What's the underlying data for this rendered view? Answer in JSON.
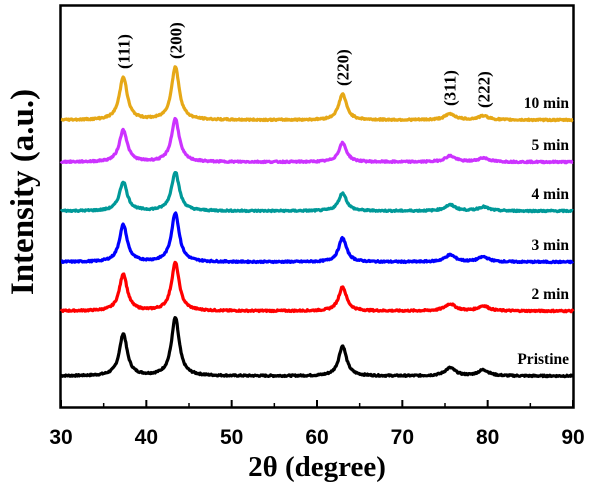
{
  "chart_data": {
    "type": "line",
    "xlabel": "2θ (degree)",
    "ylabel": "Intensity (a.u.)",
    "xlim": [
      30,
      90
    ],
    "x_ticks": [
      30,
      40,
      50,
      60,
      70,
      80,
      90
    ],
    "grid": false,
    "y_ticks_shown": false,
    "peak_labels": [
      {
        "text": "(111)",
        "x": 37.3
      },
      {
        "text": "(200)",
        "x": 43.4
      },
      {
        "text": "(220)",
        "x": 63.0
      },
      {
        "text": "(311)",
        "x": 75.5
      },
      {
        "text": "(222)",
        "x": 79.5
      }
    ],
    "series": [
      {
        "name": "Pristine",
        "color": "#000000",
        "offset": 0,
        "peaks": [
          {
            "x": 37.3,
            "h": 42
          },
          {
            "x": 43.4,
            "h": 58
          },
          {
            "x": 63.0,
            "h": 30
          },
          {
            "x": 75.6,
            "h": 8
          },
          {
            "x": 79.5,
            "h": 6
          }
        ]
      },
      {
        "name": "2 min",
        "color": "#ff0000",
        "offset": 65,
        "peaks": [
          {
            "x": 37.3,
            "h": 37
          },
          {
            "x": 43.4,
            "h": 48
          },
          {
            "x": 63.0,
            "h": 24
          },
          {
            "x": 75.6,
            "h": 7
          },
          {
            "x": 79.5,
            "h": 5
          }
        ]
      },
      {
        "name": "3 min",
        "color": "#0000ff",
        "offset": 114,
        "peaks": [
          {
            "x": 37.3,
            "h": 37
          },
          {
            "x": 43.4,
            "h": 49
          },
          {
            "x": 63.0,
            "h": 24
          },
          {
            "x": 75.6,
            "h": 7
          },
          {
            "x": 79.5,
            "h": 5
          }
        ]
      },
      {
        "name": "4 min",
        "color": "#009999",
        "offset": 165,
        "peaks": [
          {
            "x": 37.3,
            "h": 29
          },
          {
            "x": 43.4,
            "h": 39
          },
          {
            "x": 63.0,
            "h": 18
          },
          {
            "x": 75.6,
            "h": 6
          },
          {
            "x": 79.5,
            "h": 4
          }
        ]
      },
      {
        "name": "5 min",
        "color": "#cc33ff",
        "offset": 214,
        "peaks": [
          {
            "x": 37.3,
            "h": 32
          },
          {
            "x": 43.4,
            "h": 43
          },
          {
            "x": 63.0,
            "h": 19
          },
          {
            "x": 75.6,
            "h": 6
          },
          {
            "x": 79.5,
            "h": 4
          }
        ]
      },
      {
        "name": "10 min",
        "color": "#e6a817",
        "offset": 256,
        "peaks": [
          {
            "x": 37.3,
            "h": 43
          },
          {
            "x": 43.4,
            "h": 53
          },
          {
            "x": 63.0,
            "h": 26
          },
          {
            "x": 75.6,
            "h": 6
          },
          {
            "x": 79.5,
            "h": 4
          }
        ]
      }
    ]
  }
}
